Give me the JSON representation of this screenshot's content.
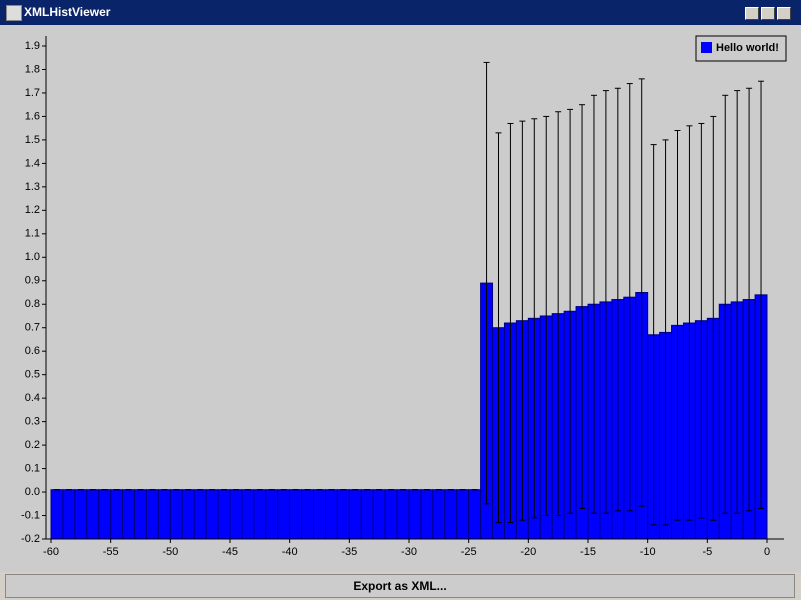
{
  "window": {
    "title": "XMLHistViewer"
  },
  "chart_data": {
    "type": "histogram",
    "bins": [
      -60,
      -59,
      -58,
      -57,
      -56,
      -55,
      -54,
      -53,
      -52,
      -51,
      -50,
      -49,
      -48,
      -47,
      -46,
      -45,
      -44,
      -43,
      -42,
      -41,
      -40,
      -39,
      -38,
      -37,
      -36,
      -35,
      -34,
      -33,
      -32,
      -31,
      -30,
      -29,
      -28,
      -27,
      -26,
      -25,
      -24,
      -23,
      -22,
      -21,
      -20,
      -19,
      -18,
      -17,
      -16,
      -15,
      -14,
      -13,
      -12,
      -11,
      -10,
      -9,
      -8,
      -7,
      -6,
      -5,
      -4,
      -3,
      -2,
      -1,
      0
    ],
    "series": [
      {
        "name": "Hello world!",
        "color": "#0000ff",
        "values": [
          0.01,
          0.01,
          0.01,
          0.01,
          0.01,
          0.01,
          0.01,
          0.01,
          0.01,
          0.01,
          0.01,
          0.01,
          0.01,
          0.01,
          0.01,
          0.01,
          0.01,
          0.01,
          0.01,
          0.01,
          0.01,
          0.01,
          0.01,
          0.01,
          0.01,
          0.01,
          0.01,
          0.01,
          0.01,
          0.01,
          0.01,
          0.01,
          0.01,
          0.01,
          0.01,
          0.01,
          0.89,
          0.7,
          0.72,
          0.73,
          0.74,
          0.75,
          0.76,
          0.77,
          0.79,
          0.8,
          0.81,
          0.82,
          0.83,
          0.85,
          0.67,
          0.68,
          0.71,
          0.72,
          0.73,
          0.74,
          0.8,
          0.81,
          0.82,
          0.84
        ],
        "errors": [
          0,
          0,
          0,
          0,
          0,
          0,
          0,
          0,
          0,
          0,
          0,
          0,
          0,
          0,
          0,
          0,
          0,
          0,
          0,
          0,
          0,
          0,
          0,
          0,
          0,
          0,
          0,
          0,
          0,
          0,
          0,
          0,
          0,
          0,
          0,
          0,
          0.94,
          0.83,
          0.85,
          0.85,
          0.85,
          0.85,
          0.86,
          0.86,
          0.86,
          0.89,
          0.9,
          0.9,
          0.91,
          0.91,
          0.81,
          0.82,
          0.83,
          0.84,
          0.84,
          0.86,
          0.89,
          0.9,
          0.9,
          0.91
        ]
      }
    ],
    "xlim": [
      -60,
      0
    ],
    "xticks": [
      -60,
      -55,
      -50,
      -45,
      -40,
      -35,
      -30,
      -25,
      -20,
      -15,
      -10,
      -5,
      0
    ],
    "ylim": [
      -0.2,
      1.9
    ],
    "yticks": [
      -0.2,
      -0.1,
      {
        "value": 0,
        "label": "0.0"
      },
      0.1,
      0.2,
      0.3,
      0.4,
      0.5,
      0.6,
      0.7,
      0.8,
      0.9,
      {
        "value": 1,
        "label": "1.0"
      },
      1.1,
      1.2,
      1.3,
      1.4,
      1.5,
      1.6,
      1.7,
      1.8,
      1.9
    ],
    "legend": "upper right"
  },
  "button": {
    "label": "Export as XML..."
  }
}
